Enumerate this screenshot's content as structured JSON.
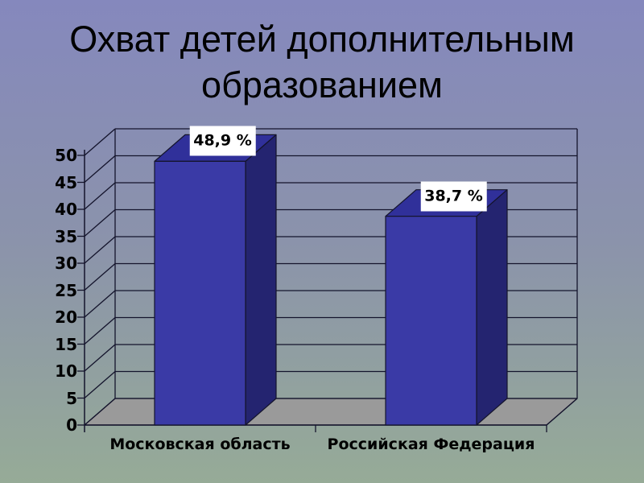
{
  "slide": {
    "title": "Охват детей дополнительным образованием"
  },
  "chart_data": {
    "type": "bar",
    "style": "3d-column",
    "title": "Охват детей дополнительным образованием",
    "categories": [
      "Московская область",
      "Российская Федерация"
    ],
    "values": [
      48.9,
      38.7
    ],
    "value_labels": [
      "48,9 %",
      "38,7 %"
    ],
    "unit": "%",
    "y_ticks": [
      0,
      5,
      10,
      15,
      20,
      25,
      30,
      35,
      40,
      45,
      50
    ],
    "ylim": [
      0,
      50
    ],
    "grid": true,
    "legend": false
  },
  "colors": {
    "bg_top": "#8588bd",
    "bg_mid": "#8b93ab",
    "bg_bottom": "#96ab97",
    "bar_front": "#3a3aa6",
    "bar_top": "#30309a",
    "bar_side": "#242470",
    "floor": "#9a9a9a",
    "line": "#14142c",
    "label_box": "#ffffff",
    "text": "#000000"
  }
}
